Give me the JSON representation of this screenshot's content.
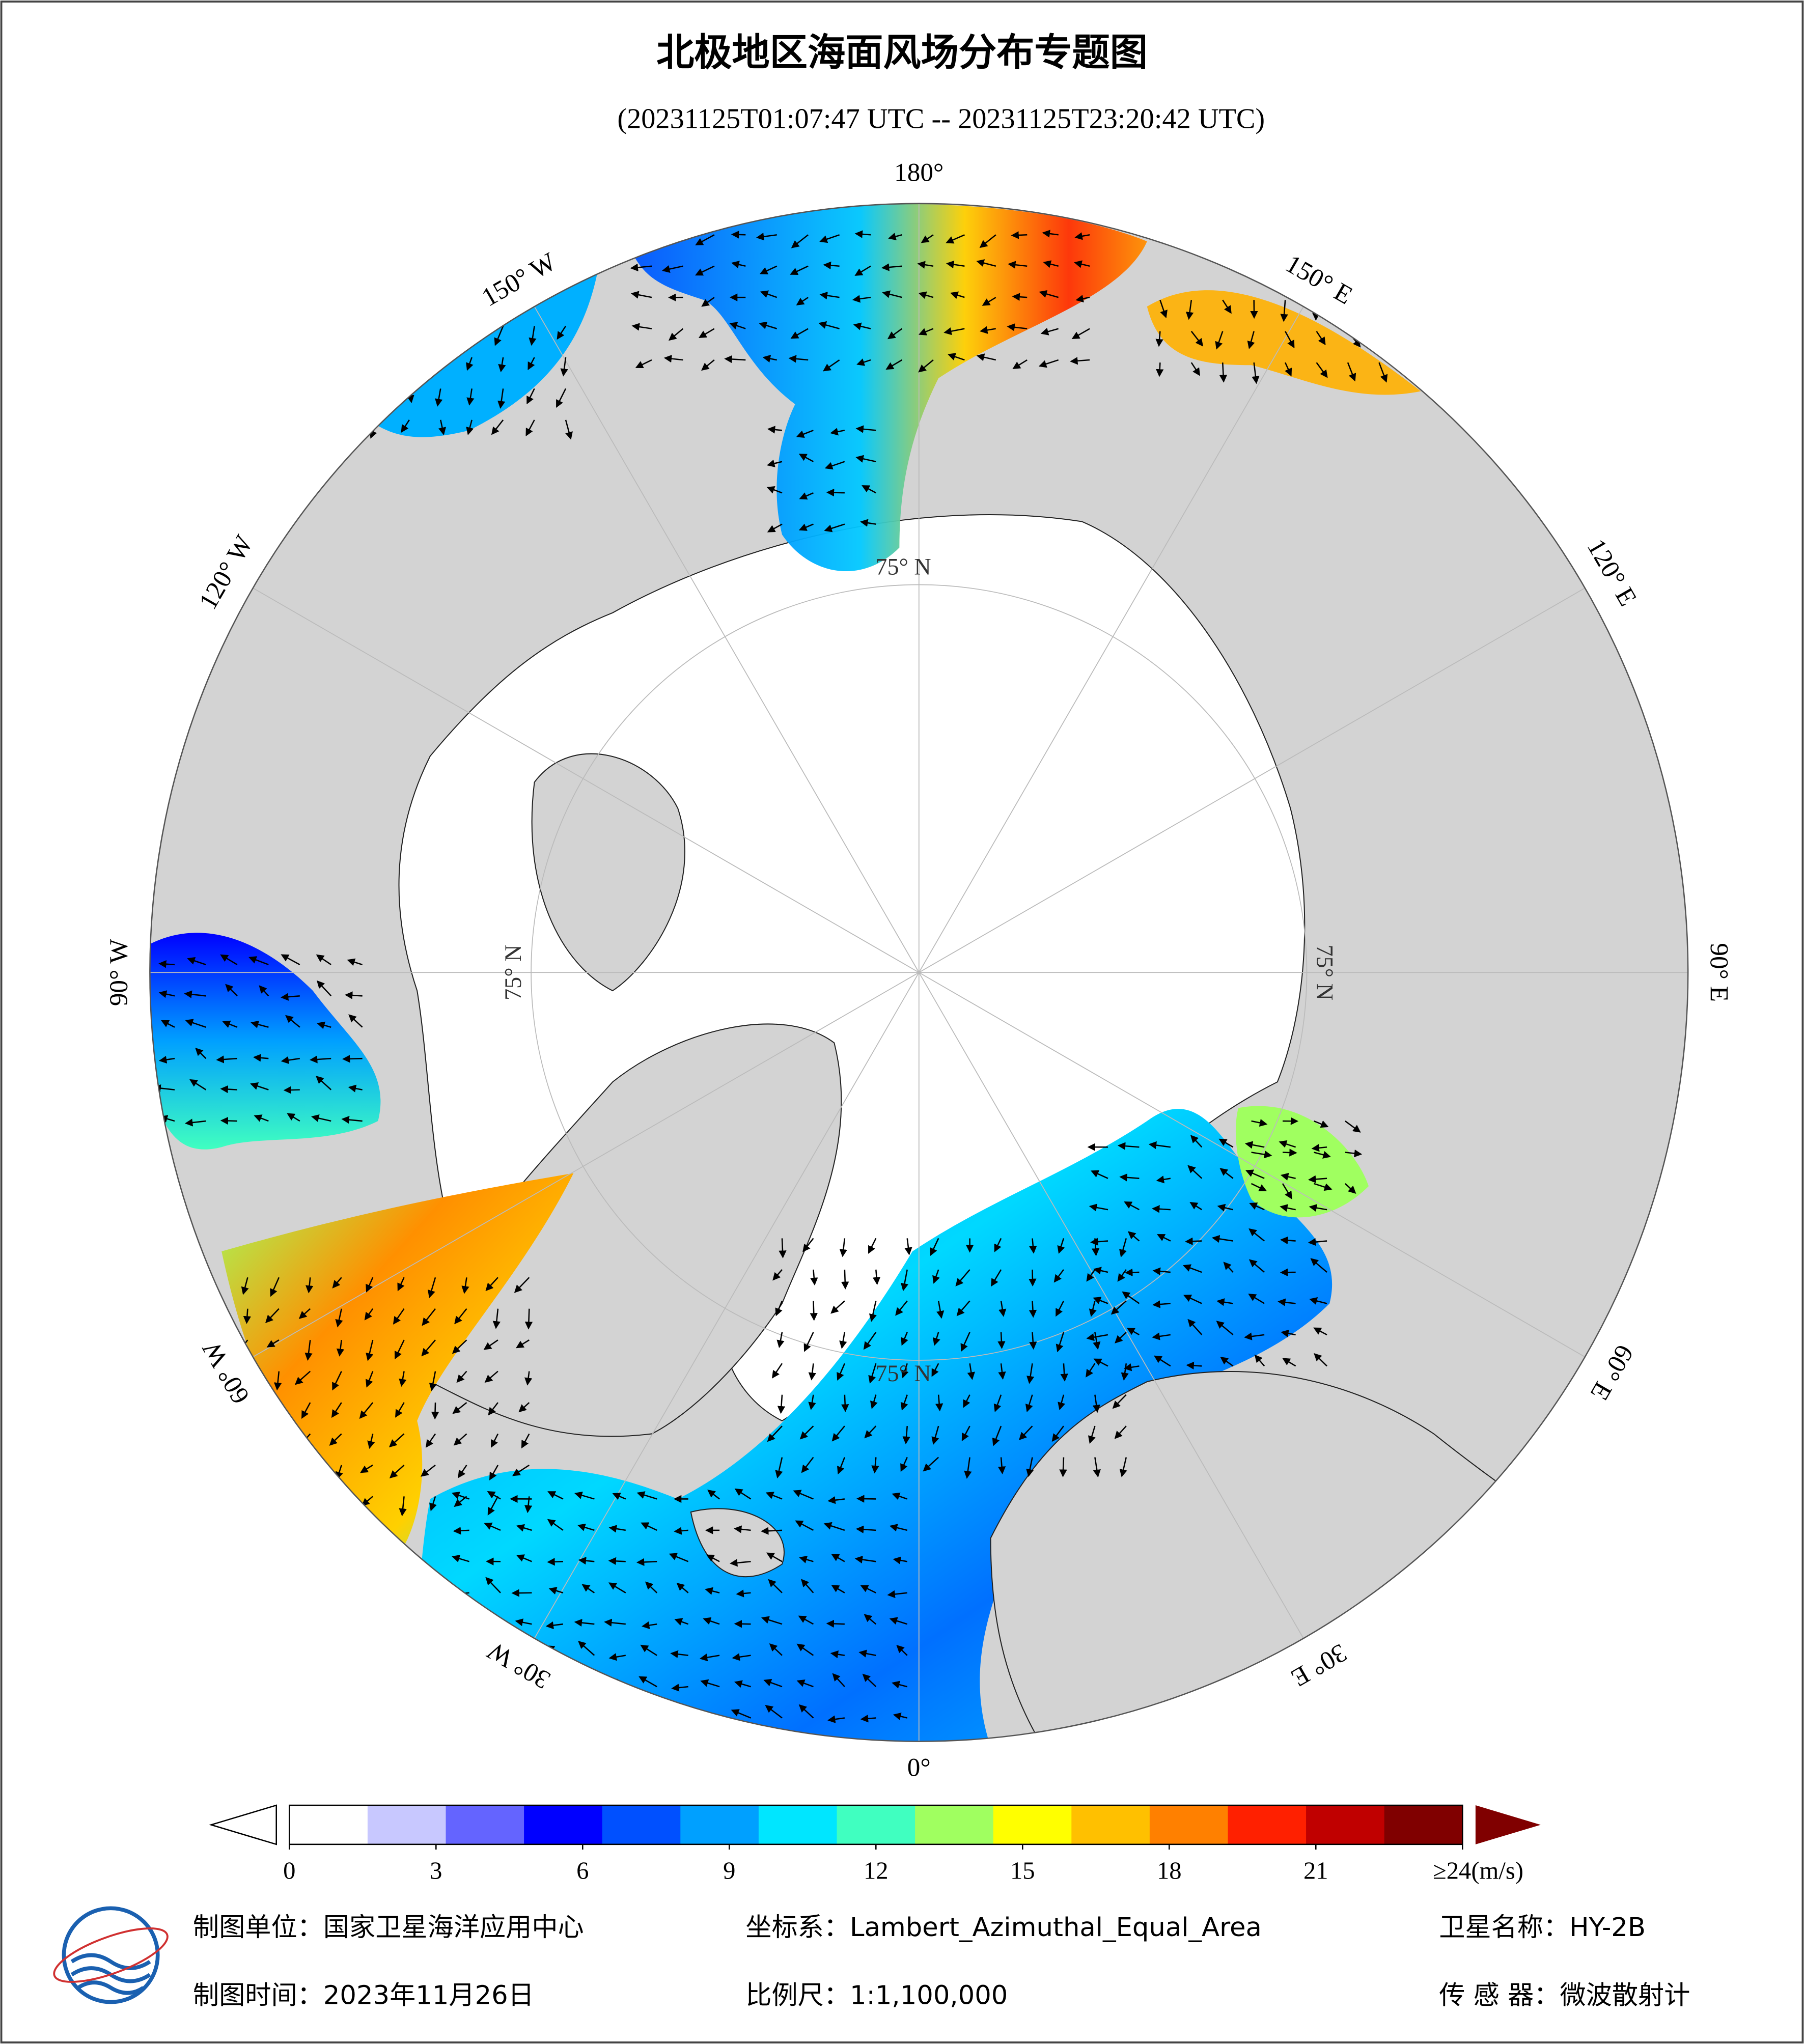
{
  "title": "北极地区海面风场分布专题图",
  "subtitle": "(20231125T01:07:47 UTC -- 20231125T23:20:42 UTC)",
  "map": {
    "lon_labels": [
      {
        "value": 180,
        "label": "180°"
      },
      {
        "value": 150,
        "label": "150° E"
      },
      {
        "value": 120,
        "label": "120° E"
      },
      {
        "value": 90,
        "label": "90° E"
      },
      {
        "value": 60,
        "label": "60° E"
      },
      {
        "value": 30,
        "label": "30° E"
      },
      {
        "value": 0,
        "label": "0°"
      },
      {
        "value": -30,
        "label": "30° W"
      },
      {
        "value": -60,
        "label": "60° W"
      },
      {
        "value": -90,
        "label": "90° W"
      },
      {
        "value": -120,
        "label": "120° W"
      },
      {
        "value": -150,
        "label": "150° W"
      }
    ],
    "lat_label": {
      "value": 75,
      "label": "75° N"
    }
  },
  "colorbar": {
    "range": [
      0,
      24
    ],
    "colors": [
      "#ffffff",
      "#c8c8ff",
      "#6464ff",
      "#0000ff",
      "#0050ff",
      "#00a0ff",
      "#00e6ff",
      "#40ffc0",
      "#a0ff60",
      "#ffff00",
      "#ffc000",
      "#ff8000",
      "#ff2000",
      "#c00000",
      "#800000"
    ],
    "ticks": [
      0,
      3,
      6,
      9,
      12,
      15,
      18,
      21,
      {
        "value": 24,
        "label": "≥24(m/s)"
      }
    ]
  },
  "footer": {
    "producer": "制图单位：国家卫星海洋应用中心",
    "coordinate_system": "坐标系：Lambert_Azimuthal_Equal_Area",
    "satellite": "卫星名称：HY-2B",
    "date": "制图时间：2023年11月26日",
    "scale": "比例尺：1:1,100,000",
    "sensor": "传 感 器：微波散射计"
  }
}
